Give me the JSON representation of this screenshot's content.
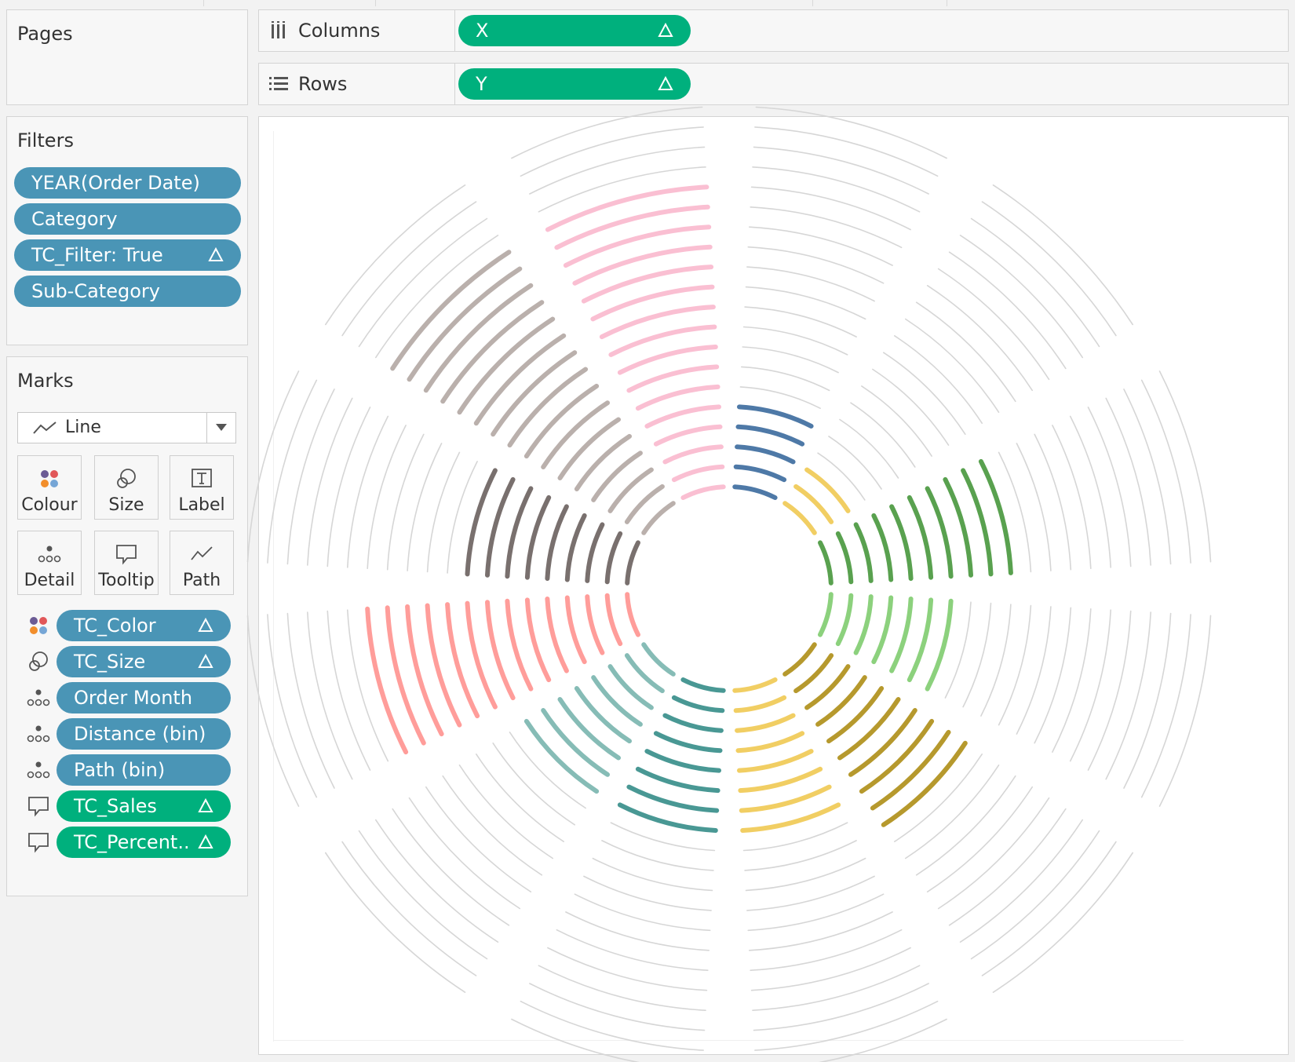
{
  "pages": {
    "title": "Pages"
  },
  "shelves": {
    "columns": {
      "label": "Columns",
      "pill": "X"
    },
    "rows": {
      "label": "Rows",
      "pill": "Y"
    }
  },
  "filters": {
    "title": "Filters",
    "items": [
      {
        "label": "YEAR(Order Date)",
        "calc": false
      },
      {
        "label": "Category",
        "calc": false
      },
      {
        "label": "TC_Filter: True",
        "calc": true
      },
      {
        "label": "Sub-Category",
        "calc": false
      }
    ]
  },
  "marks": {
    "title": "Marks",
    "mark_type": "Line",
    "buttons": [
      {
        "label": "Colour",
        "icon": "colour-icon"
      },
      {
        "label": "Size",
        "icon": "size-icon"
      },
      {
        "label": "Label",
        "icon": "label-icon"
      },
      {
        "label": "Detail",
        "icon": "detail-icon"
      },
      {
        "label": "Tooltip",
        "icon": "tooltip-icon"
      },
      {
        "label": "Path",
        "icon": "path-icon"
      }
    ],
    "fields": [
      {
        "label": "TC_Color",
        "role": "colour",
        "type": "dimension",
        "calc": true
      },
      {
        "label": "TC_Size",
        "role": "size",
        "type": "dimension",
        "calc": true
      },
      {
        "label": "Order Month",
        "role": "detail",
        "type": "dimension",
        "calc": false
      },
      {
        "label": "Distance (bin)",
        "role": "detail",
        "type": "dimension",
        "calc": false
      },
      {
        "label": "Path (bin)",
        "role": "detail",
        "type": "dimension",
        "calc": false
      },
      {
        "label": "TC_Sales",
        "role": "tooltip",
        "type": "measure",
        "calc": true
      },
      {
        "label": "TC_Percent..",
        "role": "tooltip",
        "type": "measure",
        "calc": true
      }
    ]
  },
  "colors": {
    "dimension_pill": "#4a95b6",
    "measure_pill": "#00b07d",
    "background_arc": "#d6d6d6"
  },
  "chart_data": {
    "type": "radial",
    "segments": 12,
    "rings": 20,
    "series": [
      {
        "segment": 0,
        "color": "#4e79a7",
        "filled_rings": 5
      },
      {
        "segment": 1,
        "color": "#f1ce63",
        "filled_rings": 3
      },
      {
        "segment": 2,
        "color": "#59a14f",
        "filled_rings": 10
      },
      {
        "segment": 3,
        "color": "#8cd17d",
        "filled_rings": 7
      },
      {
        "segment": 4,
        "color": "#b6992d",
        "filled_rings": 10
      },
      {
        "segment": 5,
        "color": "#f1ce63",
        "filled_rings": 8
      },
      {
        "segment": 6,
        "color": "#499894",
        "filled_rings": 8
      },
      {
        "segment": 7,
        "color": "#86bcb6",
        "filled_rings": 8
      },
      {
        "segment": 8,
        "color": "#ff9d9a",
        "filled_rings": 14
      },
      {
        "segment": 9,
        "color": "#79706e",
        "filled_rings": 9
      },
      {
        "segment": 10,
        "color": "#bab0ac",
        "filled_rings": 16
      },
      {
        "segment": 11,
        "color": "#fabfd2",
        "filled_rings": 16
      }
    ]
  }
}
